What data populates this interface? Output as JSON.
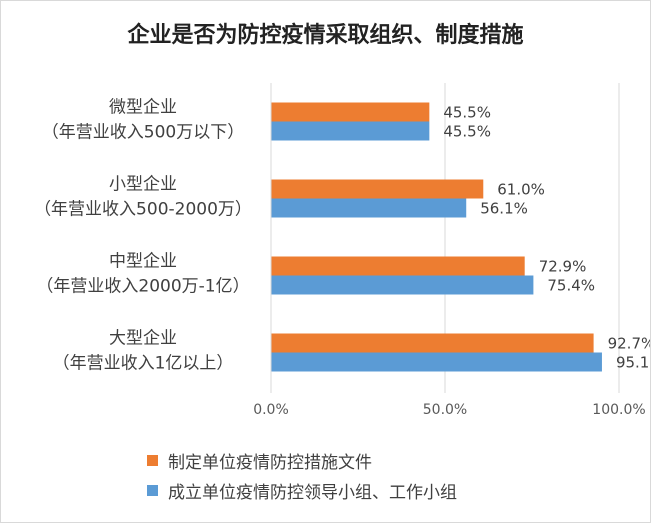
{
  "chart_data": {
    "type": "bar",
    "orientation": "horizontal",
    "title": "企业是否为防控疫情采取组织、制度措施",
    "categories": [
      [
        "微型企业",
        "（年营业收入500万以下）"
      ],
      [
        "小型企业",
        "（年营业收入500-2000万）"
      ],
      [
        "中型企业",
        "（年营业收入2000万-1亿）"
      ],
      [
        "大型企业",
        "（年营业收入1亿以上）"
      ]
    ],
    "series": [
      {
        "name": "制定单位疫情防控措施文件",
        "color": "#ED7D31",
        "values": [
          45.5,
          61.0,
          72.9,
          92.7
        ]
      },
      {
        "name": "成立单位疫情防控领导小组、工作小组",
        "color": "#5B9BD5",
        "values": [
          45.5,
          56.1,
          75.4,
          95.1
        ]
      }
    ],
    "xlim": [
      0,
      100
    ],
    "xticks": [
      "0.0%",
      "50.0%",
      "100.0%"
    ],
    "value_suffix": "%",
    "grid": true,
    "legend_position": "bottom-left"
  }
}
